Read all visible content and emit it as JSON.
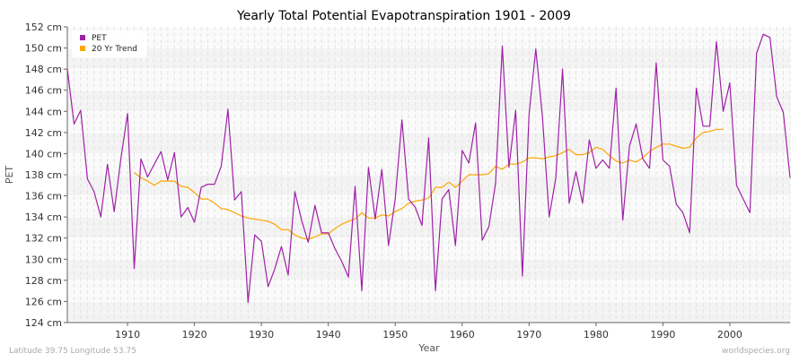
{
  "chart_data": {
    "type": "line",
    "title": "Yearly Total Potential Evapotranspiration 1901 - 2009",
    "xlabel": "Year",
    "ylabel": "PET",
    "xlim": [
      1901,
      2009
    ],
    "ylim": [
      124,
      152
    ],
    "y_unit": "cm",
    "x_ticks": [
      1910,
      1920,
      1930,
      1940,
      1950,
      1960,
      1970,
      1980,
      1990,
      2000
    ],
    "y_ticks": [
      "124 cm",
      "126 cm",
      "128 cm",
      "130 cm",
      "132 cm",
      "134 cm",
      "136 cm",
      "138 cm",
      "140 cm",
      "142 cm",
      "144 cm",
      "146 cm",
      "148 cm",
      "150 cm",
      "152 cm"
    ],
    "grid": true,
    "legend_position": "top-left",
    "series": [
      {
        "name": "PET",
        "color": "#a020a8",
        "x_start": 1901,
        "values": [
          148.0,
          142.8,
          144.1,
          137.6,
          136.4,
          134.0,
          139.0,
          134.5,
          139.5,
          143.8,
          129.1,
          139.5,
          137.8,
          139.0,
          140.2,
          137.5,
          140.1,
          134.0,
          134.9,
          133.5,
          136.8,
          137.1,
          137.1,
          138.8,
          144.2,
          135.6,
          136.4,
          125.9,
          132.3,
          131.7,
          127.4,
          129.1,
          131.2,
          128.5,
          136.4,
          133.7,
          131.6,
          135.1,
          132.5,
          132.5,
          131.0,
          129.8,
          128.3,
          136.9,
          127.0,
          138.7,
          133.8,
          138.5,
          131.3,
          135.7,
          143.2,
          135.7,
          134.9,
          133.2,
          141.5,
          127.0,
          135.7,
          136.6,
          131.3,
          140.3,
          139.1,
          142.9,
          131.8,
          133.1,
          137.2,
          150.2,
          138.7,
          144.1,
          128.4,
          143.7,
          149.9,
          143.5,
          134.0,
          137.7,
          148.0,
          135.3,
          138.3,
          135.3,
          141.3,
          138.6,
          139.4,
          138.6,
          146.2,
          133.7,
          140.7,
          142.8,
          139.5,
          138.6,
          148.6,
          139.4,
          138.8,
          135.2,
          134.4,
          132.5,
          146.2,
          142.6,
          142.6,
          150.6,
          144.0,
          146.7,
          137.0,
          135.7,
          134.4,
          149.5,
          151.3,
          151.0,
          145.4,
          143.9,
          137.7
        ]
      },
      {
        "name": "20 Yr Trend",
        "color": "#ffa500",
        "x_start": 1911,
        "values": [
          138.2,
          137.7,
          137.4,
          137.0,
          137.4,
          137.4,
          137.4,
          136.9,
          136.8,
          136.3,
          135.7,
          135.7,
          135.3,
          134.8,
          134.7,
          134.4,
          134.1,
          133.9,
          133.8,
          133.7,
          133.6,
          133.3,
          132.8,
          132.8,
          132.3,
          132.0,
          131.9,
          132.1,
          132.4,
          132.4,
          132.9,
          133.3,
          133.6,
          133.8,
          134.4,
          133.9,
          133.9,
          134.2,
          134.1,
          134.5,
          134.8,
          135.3,
          135.5,
          135.6,
          135.8,
          136.8,
          136.8,
          137.3,
          136.8,
          137.4,
          138.0,
          138.0,
          138.0,
          138.1,
          138.8,
          138.5,
          139.0,
          139.0,
          139.2,
          139.6,
          139.6,
          139.5,
          139.7,
          139.8,
          140.1,
          140.4,
          139.9,
          139.9,
          140.1,
          140.6,
          140.4,
          139.8,
          139.3,
          139.1,
          139.4,
          139.2,
          139.6,
          140.2,
          140.6,
          140.9,
          140.9,
          140.7,
          140.5,
          140.6,
          141.5,
          142.0,
          142.1,
          142.3,
          142.3
        ]
      }
    ]
  },
  "footer": {
    "location": "Latitude 39.75 Longitude 53.75",
    "credit": "worldspecies.org"
  }
}
